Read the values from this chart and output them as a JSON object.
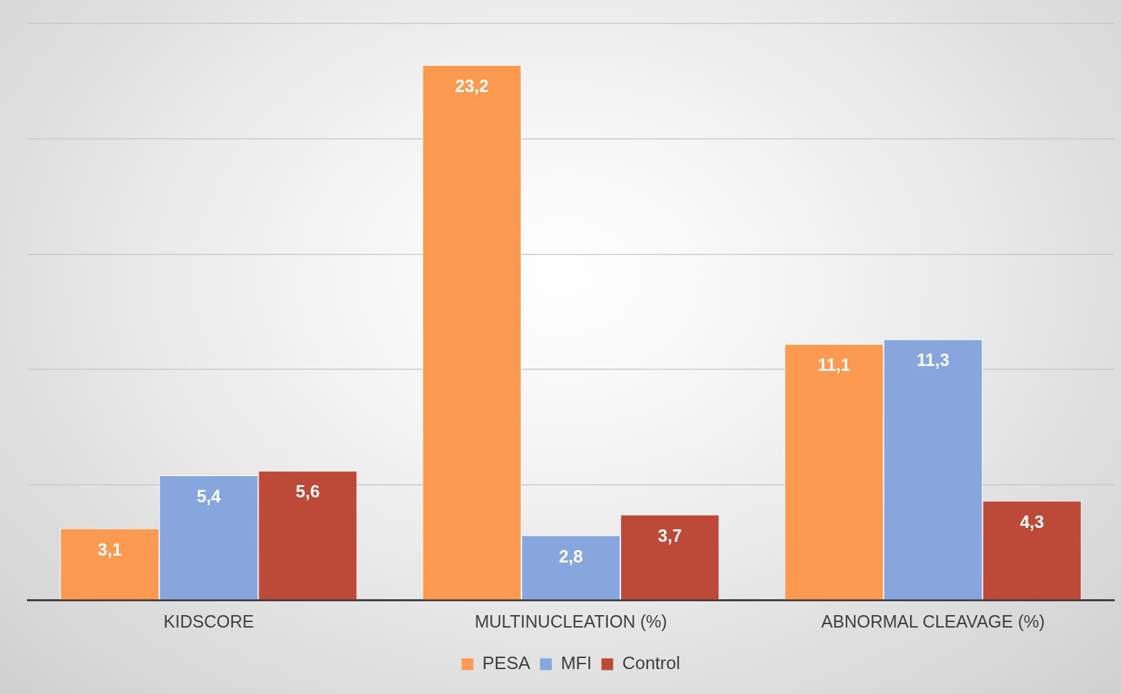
{
  "chart_data": {
    "type": "bar",
    "categories": [
      "KIDSCORE",
      "MULTINUCLEATION (%)",
      "ABNORMAL CLEAVAGE (%)"
    ],
    "series": [
      {
        "name": "PESA",
        "color": "#fd9a52",
        "values": [
          3.1,
          23.2,
          11.1
        ],
        "value_labels": [
          "3,1",
          "23,2",
          "11,1"
        ]
      },
      {
        "name": "MFI",
        "color": "#87a6dd",
        "values": [
          5.4,
          2.8,
          11.3
        ],
        "value_labels": [
          "5,4",
          "2,8",
          "11,3"
        ]
      },
      {
        "name": "Control",
        "color": "#bd4a38",
        "values": [
          5.6,
          3.7,
          4.3
        ],
        "value_labels": [
          "5,6",
          "3,7",
          "4,3"
        ]
      }
    ],
    "ylim": [
      0,
      25
    ],
    "yticks": [
      {
        "value": 0,
        "label": null
      },
      {
        "value": 5,
        "label": null
      },
      {
        "value": 10,
        "label": null
      },
      {
        "value": 15,
        "label": null
      },
      {
        "value": 20,
        "label": null
      },
      {
        "value": 25,
        "label": null
      }
    ],
    "tick_labels": "x",
    "grid": "y",
    "legend": "bottom"
  }
}
